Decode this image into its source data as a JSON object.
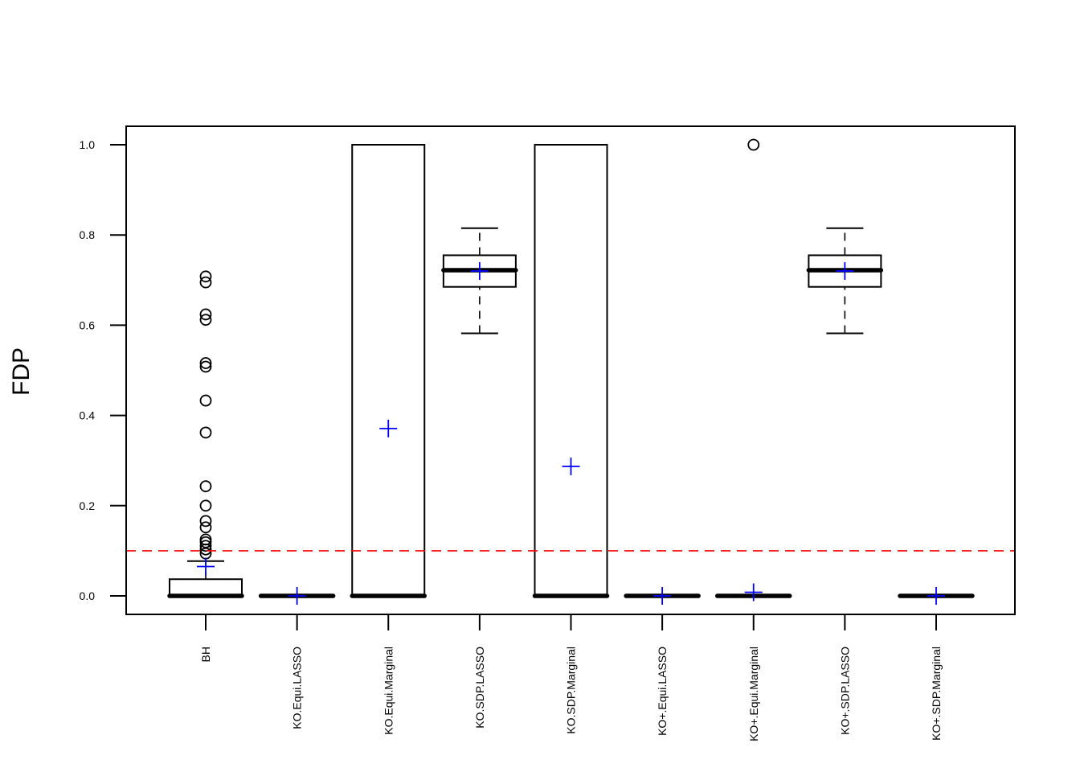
{
  "chart_data": {
    "type": "boxplot",
    "title": "",
    "xlabel": "",
    "ylabel": "FDP",
    "ylim": [
      -0.04,
      1.04
    ],
    "yticks": [
      0.0,
      0.2,
      0.4,
      0.6,
      0.8,
      1.0
    ],
    "ytick_labels": [
      "0.0",
      "0.2",
      "0.4",
      "0.6",
      "0.8",
      "1.0"
    ],
    "grid": false,
    "reference_line": {
      "value": 0.1,
      "color": "#ff0000",
      "style": "dashed"
    },
    "colors": {
      "box": "#000000",
      "mean_marker": "#0000ff",
      "reference": "#ff0000"
    },
    "categories": [
      "BH",
      "KO.Equi.LASSO",
      "KO.Equi.Marginal",
      "KO.SDP.LASSO",
      "KO.SDP.Marginal",
      "KO+.Equi.LASSO",
      "KO+.Equi.Marginal",
      "KO+.SDP.LASSO",
      "KO+.SDP.Marginal"
    ],
    "boxes": [
      {
        "whisker_low": 0.0,
        "q1": 0.0,
        "median": 0.0,
        "q3": 0.037,
        "whisker_high": 0.077,
        "mean": 0.065,
        "outliers": [
          0.708,
          0.695,
          0.624,
          0.612,
          0.516,
          0.508,
          0.433,
          0.362,
          0.243,
          0.2,
          0.166,
          0.152,
          0.125,
          0.119,
          0.111,
          0.103,
          0.094
        ]
      },
      {
        "whisker_low": 0.0,
        "q1": 0.0,
        "median": 0.0,
        "q3": 0.0,
        "whisker_high": 0.0,
        "mean": 0.0,
        "outliers": []
      },
      {
        "whisker_low": 0.0,
        "q1": 0.0,
        "median": 0.0,
        "q3": 1.0,
        "whisker_high": 1.0,
        "mean": 0.371,
        "outliers": []
      },
      {
        "whisker_low": 0.582,
        "q1": 0.685,
        "median": 0.722,
        "q3": 0.755,
        "whisker_high": 0.815,
        "mean": 0.72,
        "outliers": []
      },
      {
        "whisker_low": 0.0,
        "q1": 0.0,
        "median": 0.0,
        "q3": 1.0,
        "whisker_high": 1.0,
        "mean": 0.287,
        "outliers": []
      },
      {
        "whisker_low": 0.0,
        "q1": 0.0,
        "median": 0.0,
        "q3": 0.0,
        "whisker_high": 0.0,
        "mean": 0.0,
        "outliers": []
      },
      {
        "whisker_low": 0.0,
        "q1": 0.0,
        "median": 0.0,
        "q3": 0.0,
        "whisker_high": 0.0,
        "mean": 0.008,
        "outliers": [
          1.0
        ]
      },
      {
        "whisker_low": 0.582,
        "q1": 0.685,
        "median": 0.722,
        "q3": 0.755,
        "whisker_high": 0.815,
        "mean": 0.72,
        "outliers": []
      },
      {
        "whisker_low": 0.0,
        "q1": 0.0,
        "median": 0.0,
        "q3": 0.0,
        "whisker_high": 0.0,
        "mean": 0.0,
        "outliers": []
      }
    ]
  }
}
